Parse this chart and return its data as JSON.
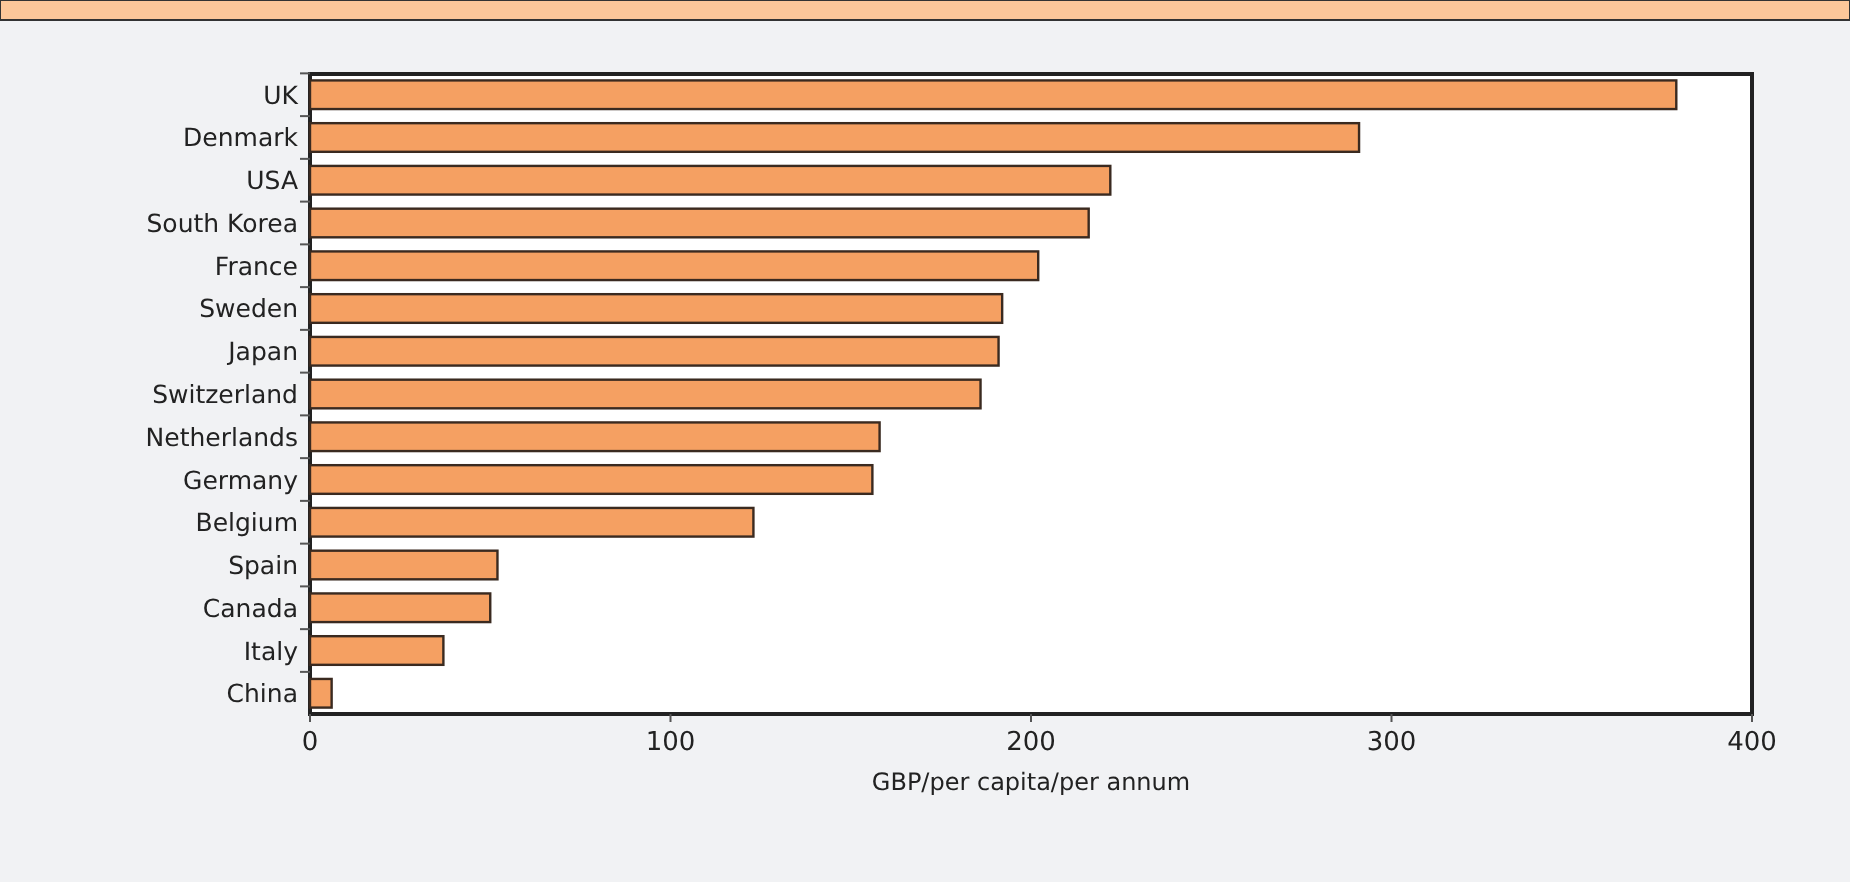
{
  "chart_data": {
    "type": "bar",
    "orientation": "horizontal",
    "xlabel": "GBP/per capita/per annum",
    "categories": [
      "UK",
      "Denmark",
      "USA",
      "South Korea",
      "France",
      "Sweden",
      "Japan",
      "Switzerland",
      "Netherlands",
      "Germany",
      "Belgium",
      "Spain",
      "Canada",
      "Italy",
      "China"
    ],
    "values": [
      379,
      291,
      222,
      216,
      202,
      192,
      191,
      186,
      158,
      156,
      123,
      52,
      50,
      37,
      6
    ],
    "color": "#f5a062",
    "xlim": [
      0,
      400
    ],
    "xticks": [
      0,
      100,
      200,
      300,
      400
    ],
    "grid": false
  }
}
